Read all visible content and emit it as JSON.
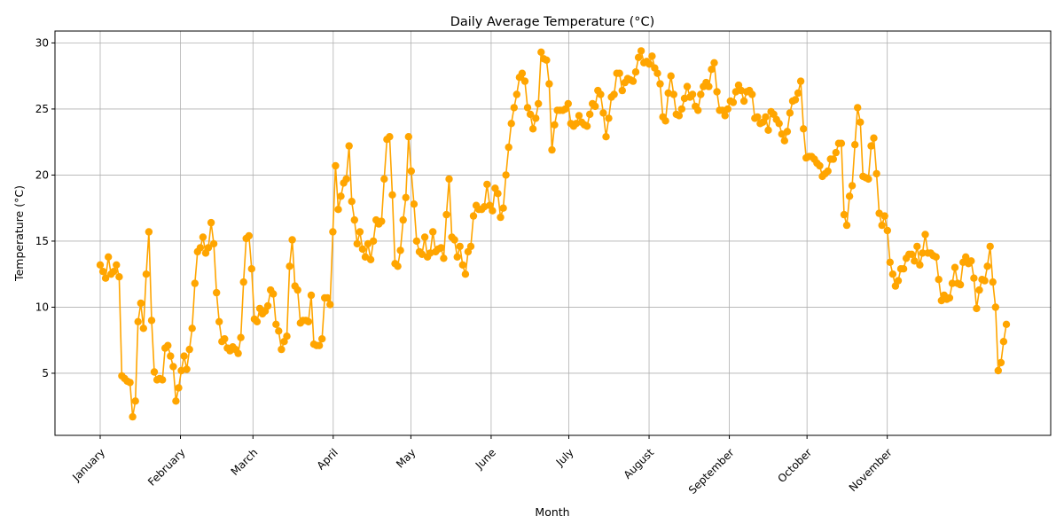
{
  "chart_data": {
    "type": "line",
    "title": "Daily Average Temperature (°C)",
    "xlabel": "Month",
    "ylabel": "Temperature (°C)",
    "grid": true,
    "xlim": [
      0,
      350
    ],
    "ylim": [
      0.3,
      30.9
    ],
    "yticks": [
      5,
      10,
      15,
      20,
      25,
      30
    ],
    "line_color": "#ffa500",
    "month_ticks": [
      {
        "label": "January",
        "day": 0
      },
      {
        "label": "February",
        "day": 31
      },
      {
        "label": "March",
        "day": 59
      },
      {
        "label": "April",
        "day": 90
      },
      {
        "label": "May",
        "day": 120
      },
      {
        "label": "June",
        "day": 151
      },
      {
        "label": "July",
        "day": 181
      },
      {
        "label": "August",
        "day": 212
      },
      {
        "label": "September",
        "day": 243
      },
      {
        "label": "October",
        "day": 273
      },
      {
        "label": "November",
        "day": 304
      }
    ],
    "series": [
      {
        "values": [
          13.2,
          12.7,
          12.2,
          13.8,
          12.5,
          12.7,
          13.2,
          12.3,
          4.8,
          4.6,
          4.4,
          4.3,
          1.7,
          2.9,
          8.9,
          10.3,
          8.4,
          12.5,
          15.7,
          9.0,
          5.1,
          4.5,
          4.6,
          4.5,
          6.9,
          7.1,
          6.3,
          5.5,
          2.9,
          3.9,
          5.2,
          6.3,
          5.3,
          6.8,
          8.4,
          11.8,
          14.2,
          14.5,
          15.3,
          14.1,
          14.5,
          16.4,
          14.8,
          11.1,
          8.9,
          7.4,
          7.6,
          6.9,
          6.7,
          7.0,
          6.8,
          6.5,
          7.7,
          11.9,
          15.2,
          15.4,
          12.9,
          9.1,
          8.9,
          9.9,
          9.5,
          9.7,
          10.1,
          11.3,
          11.0,
          8.7,
          8.2,
          6.8,
          7.4,
          7.8,
          13.1,
          15.1,
          11.6,
          11.3,
          8.8,
          9.0,
          9.0,
          8.9,
          10.9,
          7.2,
          7.1,
          7.1,
          7.6,
          10.7,
          10.7,
          10.2,
          15.7,
          20.7,
          17.4,
          18.4,
          19.4,
          19.7,
          22.2,
          18.0,
          16.6,
          14.8,
          15.7,
          14.4,
          13.8,
          14.8,
          13.6,
          15.0,
          16.6,
          16.3,
          16.5,
          19.7,
          22.7,
          22.9,
          18.5,
          13.3,
          13.1,
          14.3,
          16.6,
          18.3,
          22.9,
          20.3,
          17.8,
          15.0,
          14.2,
          14.0,
          15.3,
          13.8,
          14.1,
          15.7,
          14.2,
          14.4,
          14.5,
          13.7,
          17.0,
          19.7,
          15.3,
          15.1,
          13.8,
          14.6,
          13.2,
          12.5,
          14.2,
          14.6,
          16.9,
          17.7,
          17.4,
          17.4,
          17.6,
          19.3,
          17.7,
          17.3,
          19.0,
          18.6,
          16.8,
          17.5,
          20.0,
          22.1,
          23.9,
          25.1,
          26.1,
          27.4,
          27.7,
          27.1,
          25.1,
          24.6,
          23.5,
          24.3,
          25.4,
          29.3,
          28.8,
          28.7,
          26.9,
          21.9,
          23.8,
          24.9,
          24.9,
          24.9,
          25.0,
          25.4,
          23.9,
          23.7,
          23.9,
          24.5,
          24.0,
          23.8,
          23.7,
          24.6,
          25.4,
          25.2,
          26.4,
          26.1,
          24.7,
          22.9,
          24.3,
          25.9,
          26.1,
          27.7,
          27.7,
          26.4,
          27.0,
          27.3,
          27.2,
          27.1,
          27.8,
          28.9,
          29.4,
          28.5,
          28.6,
          28.4,
          29.0,
          28.1,
          27.7,
          26.9,
          24.4,
          24.1,
          26.2,
          27.5,
          26.1,
          24.6,
          24.5,
          25.0,
          25.8,
          26.7,
          25.9,
          26.1,
          25.2,
          24.9,
          26.1,
          26.7,
          27.0,
          26.7,
          28.0,
          28.5,
          26.3,
          24.9,
          24.9,
          24.5,
          25.0,
          25.6,
          25.5,
          26.3,
          26.8,
          26.4,
          25.6,
          26.3,
          26.4,
          26.1,
          24.3,
          24.4,
          23.9,
          24.0,
          24.4,
          23.4,
          24.8,
          24.6,
          24.2,
          23.9,
          23.1,
          22.6,
          23.3,
          24.7,
          25.6,
          25.7,
          26.2,
          27.1,
          23.5,
          21.3,
          21.4,
          21.4,
          21.2,
          20.9,
          20.7,
          19.9,
          20.1,
          20.3,
          21.2,
          21.2,
          21.7,
          22.4,
          22.4,
          17.0,
          16.2,
          18.4,
          19.2,
          22.3,
          25.1,
          24.0,
          19.9,
          19.8,
          19.7,
          22.2,
          22.8,
          20.1,
          17.1,
          16.2,
          16.9,
          15.8,
          13.4,
          12.5,
          11.6,
          12.0,
          12.9,
          12.9,
          13.7,
          14.0,
          14.0,
          13.5,
          14.6,
          13.2,
          14.1,
          15.5,
          14.1,
          14.1,
          13.9,
          13.8,
          12.1,
          10.5,
          10.9,
          10.6,
          10.7,
          11.8,
          13.0,
          11.8,
          11.7,
          13.4,
          13.8,
          13.3,
          13.5,
          12.2,
          9.9,
          11.3,
          12.1,
          12.0,
          13.1,
          14.6,
          11.9,
          10.0,
          5.2,
          5.8,
          7.4,
          8.7
        ]
      }
    ]
  }
}
